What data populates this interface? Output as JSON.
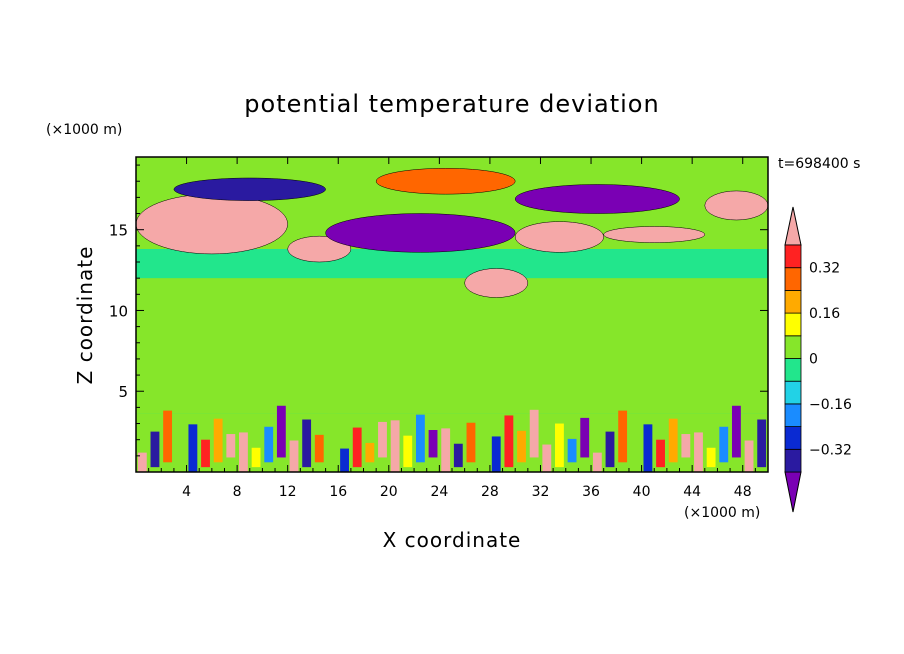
{
  "chart_data": {
    "type": "heatmap",
    "title": "potential temperature deviation",
    "xlabel": "X coordinate",
    "ylabel": "Z coordinate",
    "x_unit": "(×1000 m)",
    "y_unit": "(×1000 m)",
    "time_label": "t=698400 s",
    "xlim": [
      0,
      50
    ],
    "ylim": [
      0,
      19.5
    ],
    "x_ticks": [
      4,
      8,
      12,
      16,
      20,
      24,
      28,
      32,
      36,
      40,
      44,
      48
    ],
    "y_ticks": [
      5,
      10,
      15
    ],
    "colorbar": {
      "levels": [
        -0.48,
        -0.4,
        -0.32,
        -0.24,
        -0.16,
        -0.08,
        0,
        0.08,
        0.16,
        0.24,
        0.32,
        0.4,
        0.48
      ],
      "colors": [
        "#7a00b4",
        "#2a1aa0",
        "#0a2ad2",
        "#1a8cff",
        "#22d2e6",
        "#22e68c",
        "#86e62a",
        "#ffff00",
        "#ffaa00",
        "#ff6600",
        "#ff2222",
        "#f5a8a8"
      ],
      "tick_labels": [
        "0.32",
        "0.16",
        "0",
        "−0.16",
        "−0.32"
      ],
      "tick_values": [
        0.32,
        0.16,
        0,
        -0.16,
        -0.32
      ]
    },
    "field_regions": [
      {
        "x": [
          0,
          50
        ],
        "z": [
          13.8,
          19.5
        ],
        "value": 0.0
      },
      {
        "x": [
          0,
          50
        ],
        "z": [
          12.0,
          13.8
        ],
        "value": -0.04
      },
      {
        "x": [
          0,
          50
        ],
        "z": [
          3.6,
          12.0
        ],
        "value": 0.04
      },
      {
        "x": [
          0,
          50
        ],
        "z": [
          0,
          3.6
        ],
        "value": 0.0
      },
      {
        "x": [
          0,
          12
        ],
        "z": [
          13.5,
          17.2
        ],
        "value": 0.5
      },
      {
        "x": [
          12,
          17
        ],
        "z": [
          13.0,
          14.6
        ],
        "value": 0.5
      },
      {
        "x": [
          15,
          30
        ],
        "z": [
          13.6,
          16.0
        ],
        "value": -0.45
      },
      {
        "x": [
          3,
          15
        ],
        "z": [
          16.8,
          18.2
        ],
        "value": -0.4
      },
      {
        "x": [
          19,
          30
        ],
        "z": [
          17.2,
          18.8
        ],
        "value": 0.3
      },
      {
        "x": [
          30,
          43
        ],
        "z": [
          16.0,
          17.8
        ],
        "value": -0.45
      },
      {
        "x": [
          30,
          37
        ],
        "z": [
          13.6,
          15.5
        ],
        "value": 0.5
      },
      {
        "x": [
          37,
          45
        ],
        "z": [
          14.2,
          15.2
        ],
        "value": 0.5
      },
      {
        "x": [
          45,
          50
        ],
        "z": [
          15.6,
          17.4
        ],
        "value": 0.5
      },
      {
        "x": [
          26,
          31
        ],
        "z": [
          10.8,
          12.6
        ],
        "value": 0.5
      },
      {
        "x": [
          0,
          50
        ],
        "z": [
          0,
          3.6
        ],
        "value": 0.3
      }
    ]
  }
}
